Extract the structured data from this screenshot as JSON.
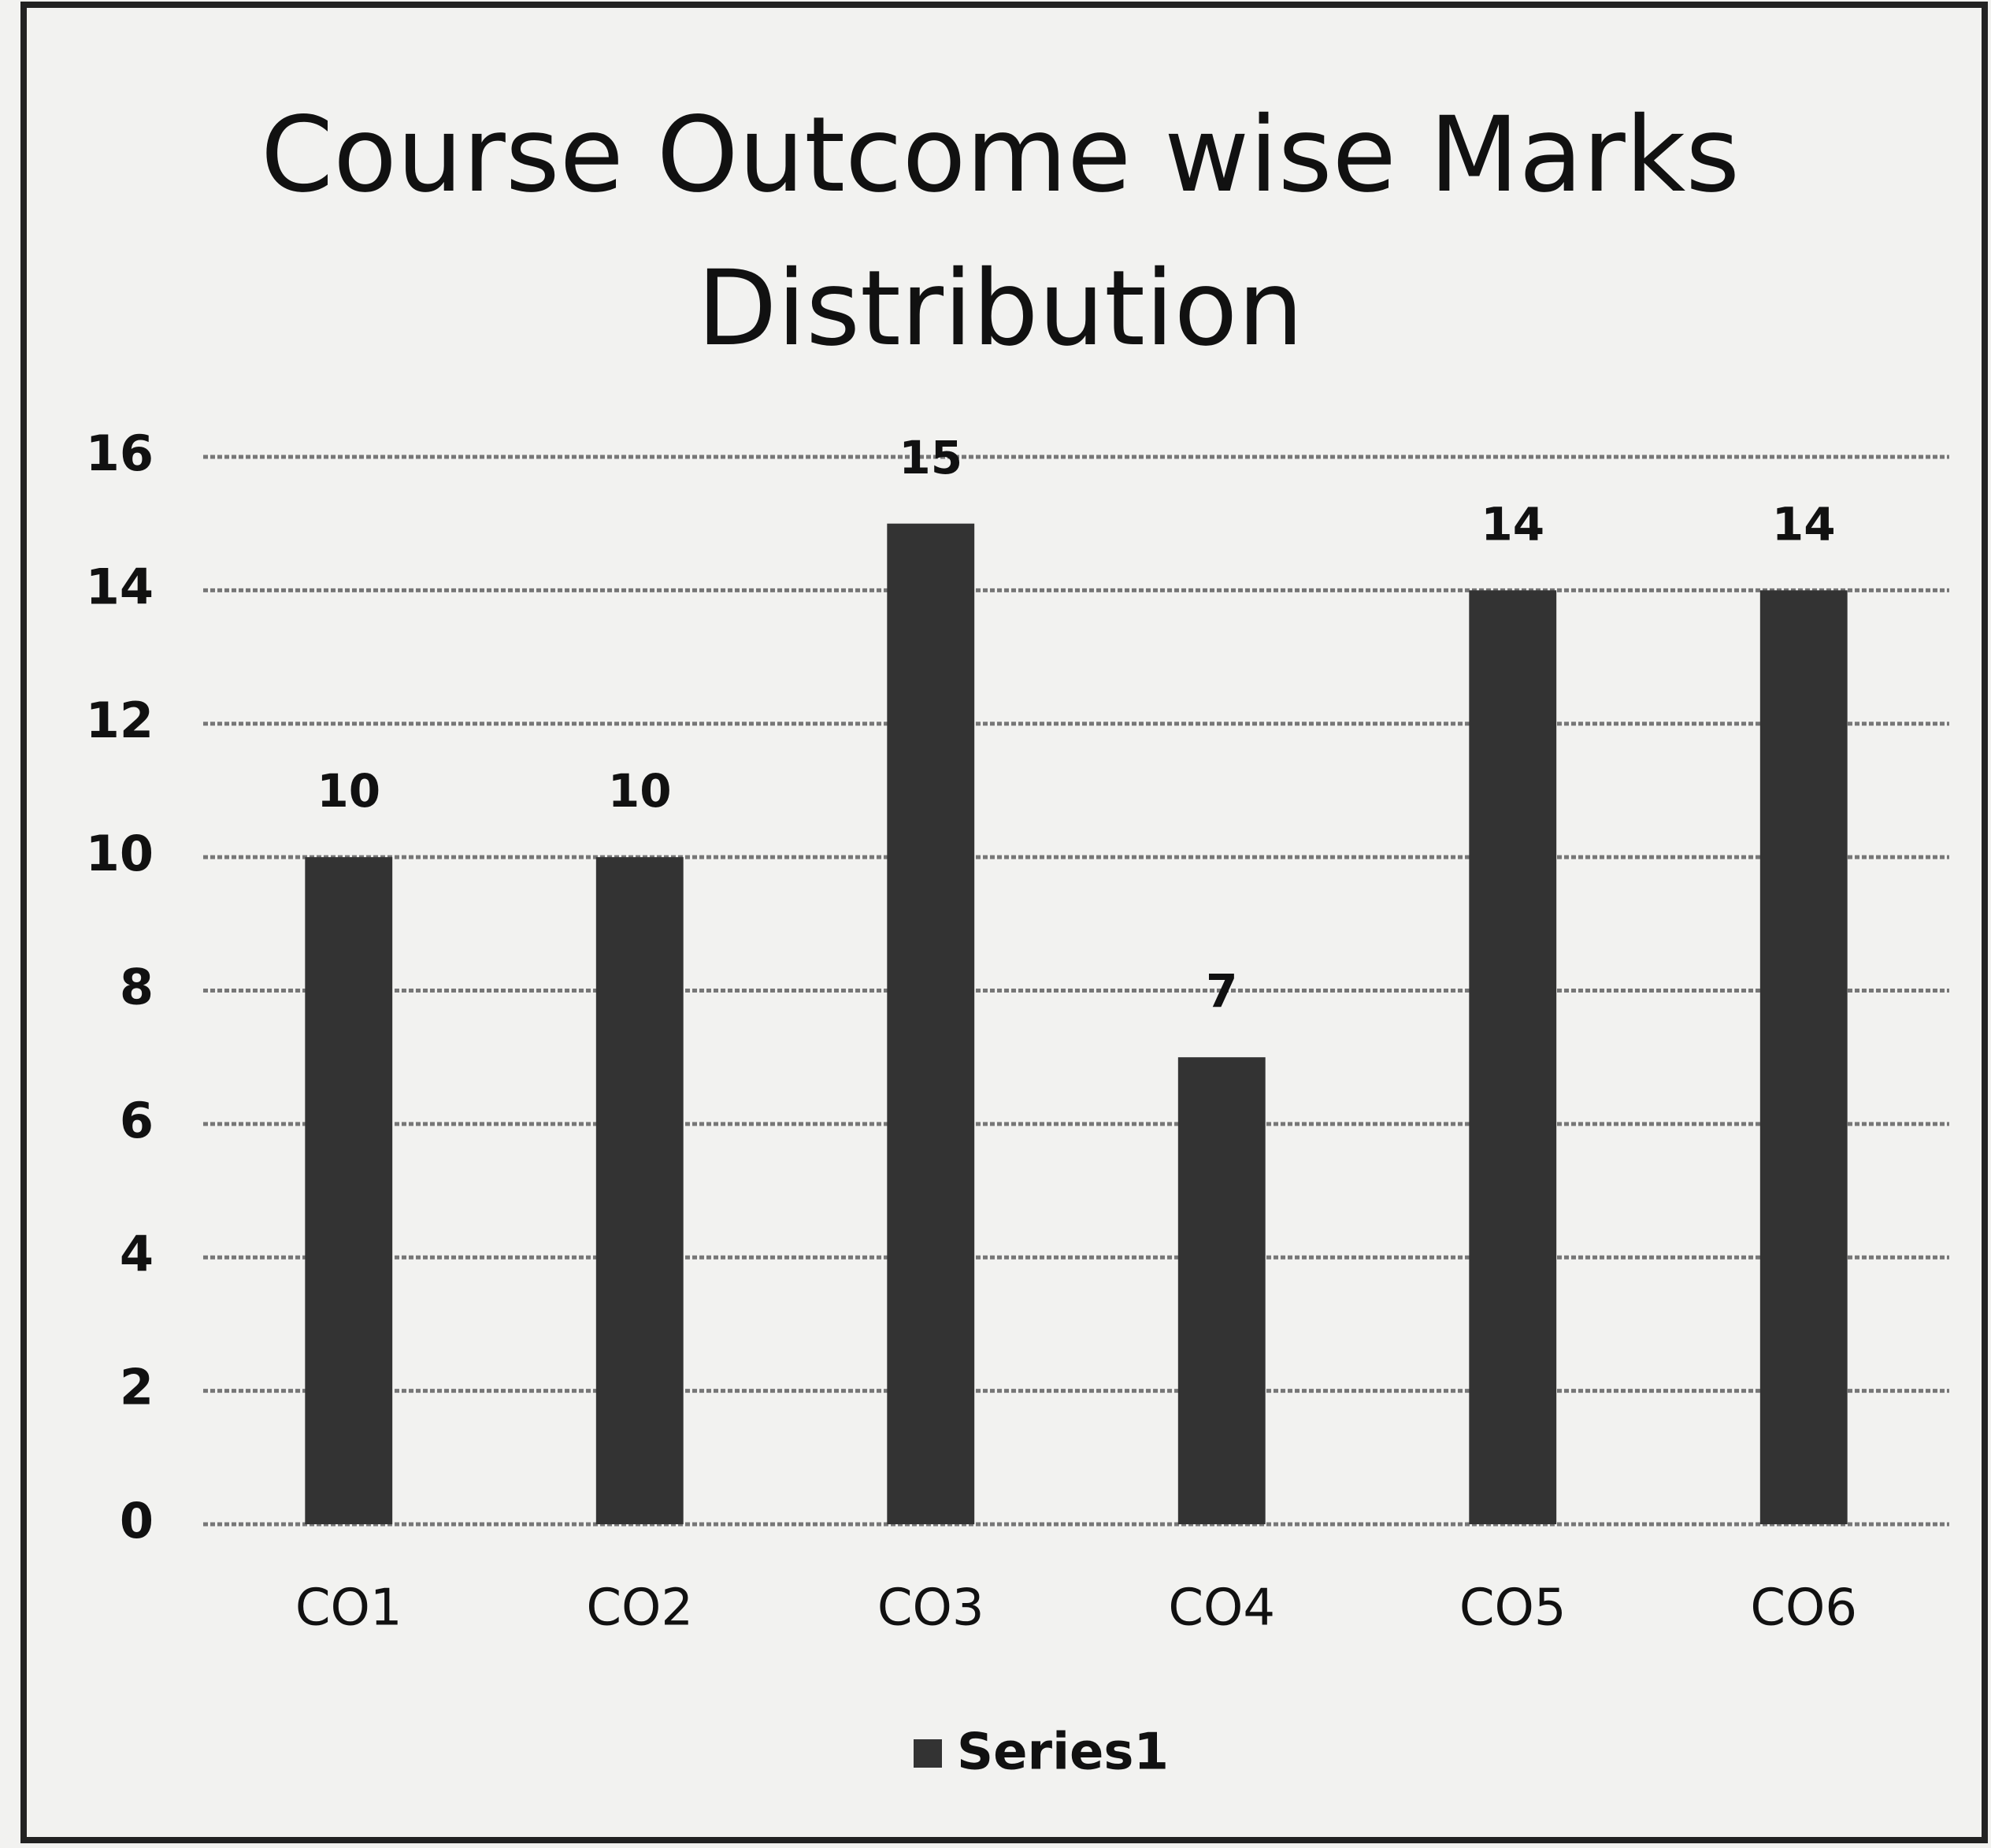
{
  "chart_data": {
    "type": "bar",
    "title": "Course Outcome wise Marks Distribution",
    "categories": [
      "CO1",
      "CO2",
      "CO3",
      "CO4",
      "CO5",
      "CO6"
    ],
    "series": [
      {
        "name": "Series1",
        "color": "#333333",
        "values": [
          10,
          10,
          15,
          7,
          14,
          14
        ]
      }
    ],
    "ylim": [
      0,
      16
    ],
    "yticks": [
      0,
      2,
      4,
      6,
      8,
      10,
      12,
      14,
      16
    ],
    "grid": true,
    "legend": "bottom"
  }
}
